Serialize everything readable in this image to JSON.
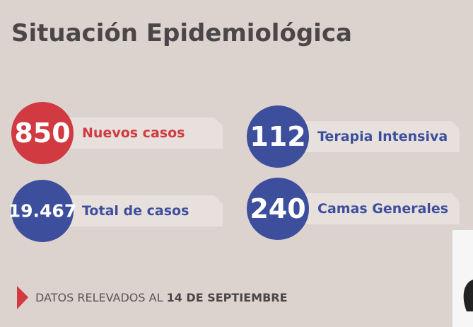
{
  "header": {
    "title": "Situación Epidemiológica"
  },
  "stats": [
    {
      "value": "850",
      "label": "Nuevos casos",
      "color": "#d03a40"
    },
    {
      "value": "112",
      "label": "Terapia Intensiva",
      "color": "#3d4f9c"
    },
    {
      "value": "19.467",
      "label": "Total de casos",
      "color": "#3d4f9c"
    },
    {
      "value": "240",
      "label": "Camas Generales",
      "color": "#3d4f9c"
    }
  ],
  "footer": {
    "prefix": "DATOS RELEVADOS AL",
    "date": "14 DE SEPTIEMBRE"
  }
}
